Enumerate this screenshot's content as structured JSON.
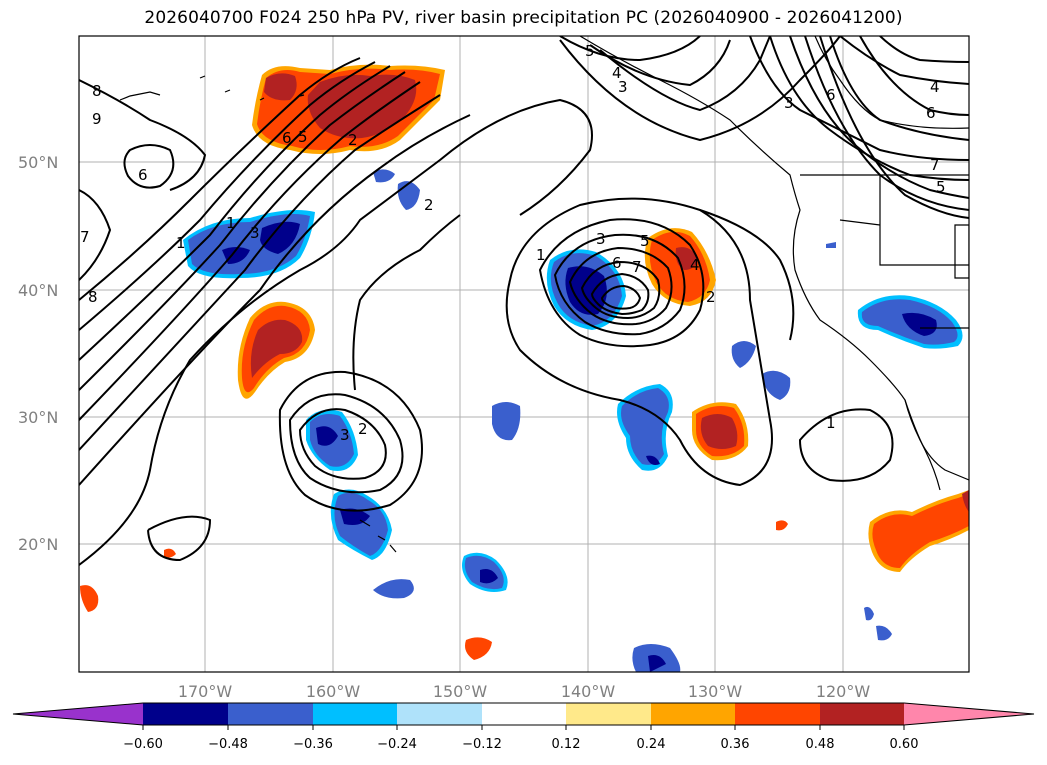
{
  "title": "2026040700 F024 250 hPa PV, river basin precipitation PC (2026040900 - 2026041200)",
  "map": {
    "projection": "PlateCarree",
    "lat_ticks": [
      "50°N",
      "40°N",
      "30°N",
      "20°N"
    ],
    "lon_ticks": [
      "170°W",
      "160°W",
      "150°W",
      "140°W",
      "130°W",
      "120°W"
    ],
    "gridlines": true,
    "coastlines": true,
    "contour_labels": [
      "8",
      "9",
      "6",
      "7",
      "8",
      "6",
      "5",
      "2",
      "3",
      "1",
      "2",
      "1",
      "3",
      "2",
      "5",
      "4",
      "3",
      "3",
      "6",
      "4",
      "6",
      "7",
      "5",
      "1",
      "3",
      "5",
      "6",
      "7",
      "4",
      "2",
      "1"
    ]
  },
  "colorbar": {
    "ticks": [
      "−0.60",
      "−0.48",
      "−0.36",
      "−0.24",
      "−0.12",
      "0.12",
      "0.24",
      "0.36",
      "0.48",
      "0.60"
    ],
    "colors": [
      "#9932cc",
      "#00008b",
      "#3a5fcd",
      "#00bfff",
      "#afe2fa",
      "#ffffff",
      "#ffe98a",
      "#ffa500",
      "#ff4500",
      "#b22222",
      "#ff86ab"
    ],
    "extend": "both"
  }
}
